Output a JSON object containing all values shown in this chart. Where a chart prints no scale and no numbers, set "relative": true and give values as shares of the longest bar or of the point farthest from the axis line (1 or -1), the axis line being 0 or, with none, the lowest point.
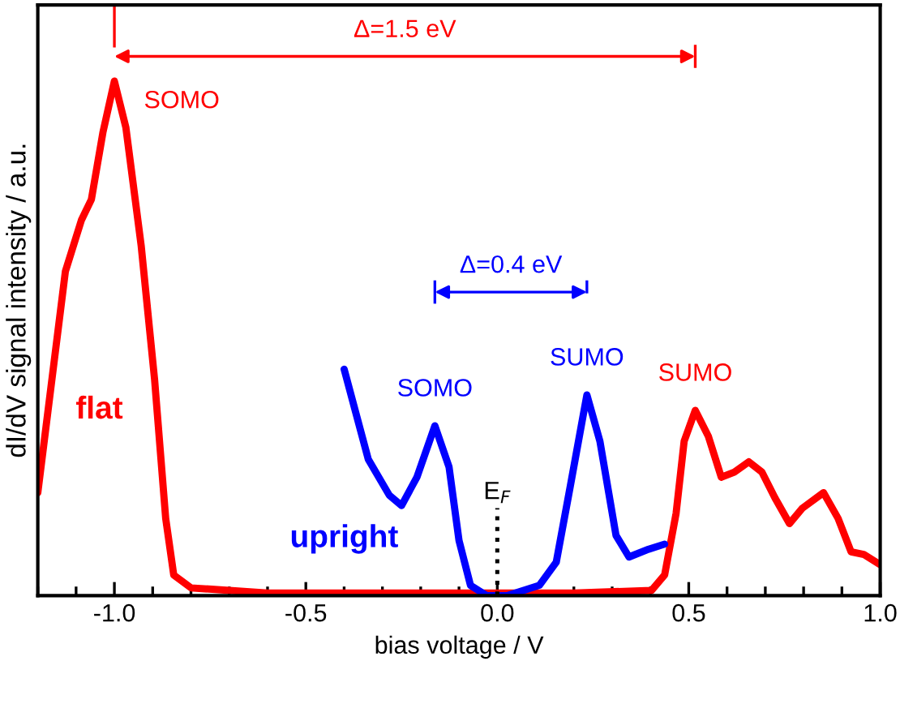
{
  "chart_data": {
    "type": "line",
    "relative": true,
    "xlabel": "bias voltage / V",
    "ylabel": "dI/dV signal intensity / a.u.",
    "xlim": [
      -1.2,
      1.0
    ],
    "xticks": [
      {
        "value": -1.0,
        "label": "-1.0"
      },
      {
        "value": -0.5,
        "label": "-0.5"
      },
      {
        "value": 0.0,
        "label": "0.0"
      },
      {
        "value": 0.5,
        "label": "0.5"
      },
      {
        "value": 1.0,
        "label": "1.0"
      }
    ],
    "grid": false,
    "ref_lines": [
      {
        "axis": "x",
        "value": 0.0,
        "label": "E$_{F}$",
        "line_style": "dotted",
        "color": "#000000"
      }
    ],
    "legend": false,
    "annotations": [
      {
        "text": "SOMO",
        "x": -1.0,
        "y": 1.0
      },
      "Δ=1.5 eV",
      {
        "text": "SUMO",
        "x": 0.517,
        "y": 0.36
      },
      {
        "text": "SOMO",
        "x": -0.163,
        "y": 0.33
      },
      "Δ=0.4 eV",
      {
        "text": "SUMO",
        "x": 0.234,
        "y": 0.39
      }
    ],
    "series": [
      {
        "name": "flat",
        "color": "#ff0000",
        "x": [
          -1.2,
          -1.128,
          -1.086,
          -1.06,
          -1.03,
          -1.0,
          -0.97,
          -0.93,
          -0.895,
          -0.866,
          -0.845,
          -0.8,
          -0.6,
          -0.4,
          -0.2,
          0.0,
          0.2,
          0.403,
          0.437,
          0.467,
          0.488,
          0.517,
          0.551,
          0.585,
          0.619,
          0.657,
          0.691,
          0.725,
          0.763,
          0.797,
          0.852,
          0.89,
          0.924,
          0.957,
          1.0
        ],
        "values": [
          0.2,
          0.63,
          0.73,
          0.77,
          0.9,
          1.0,
          0.91,
          0.68,
          0.42,
          0.15,
          0.04,
          0.015,
          0.005,
          0.005,
          0.005,
          0.005,
          0.005,
          0.01,
          0.04,
          0.16,
          0.3,
          0.36,
          0.31,
          0.23,
          0.24,
          0.26,
          0.24,
          0.19,
          0.14,
          0.17,
          0.2,
          0.15,
          0.085,
          0.08,
          0.06
        ]
      },
      {
        "name": "upright",
        "color": "#0000ff",
        "x": [
          -0.4,
          -0.337,
          -0.282,
          -0.25,
          -0.21,
          -0.163,
          -0.126,
          -0.1,
          -0.07,
          -0.028,
          0.027,
          0.11,
          0.154,
          0.19,
          0.234,
          0.268,
          0.31,
          0.344,
          0.395,
          0.437
        ],
        "values": [
          0.44,
          0.265,
          0.195,
          0.175,
          0.23,
          0.33,
          0.25,
          0.107,
          0.02,
          0.0,
          0.0,
          0.02,
          0.065,
          0.21,
          0.39,
          0.3,
          0.117,
          0.075,
          0.09,
          0.1
        ]
      }
    ]
  }
}
